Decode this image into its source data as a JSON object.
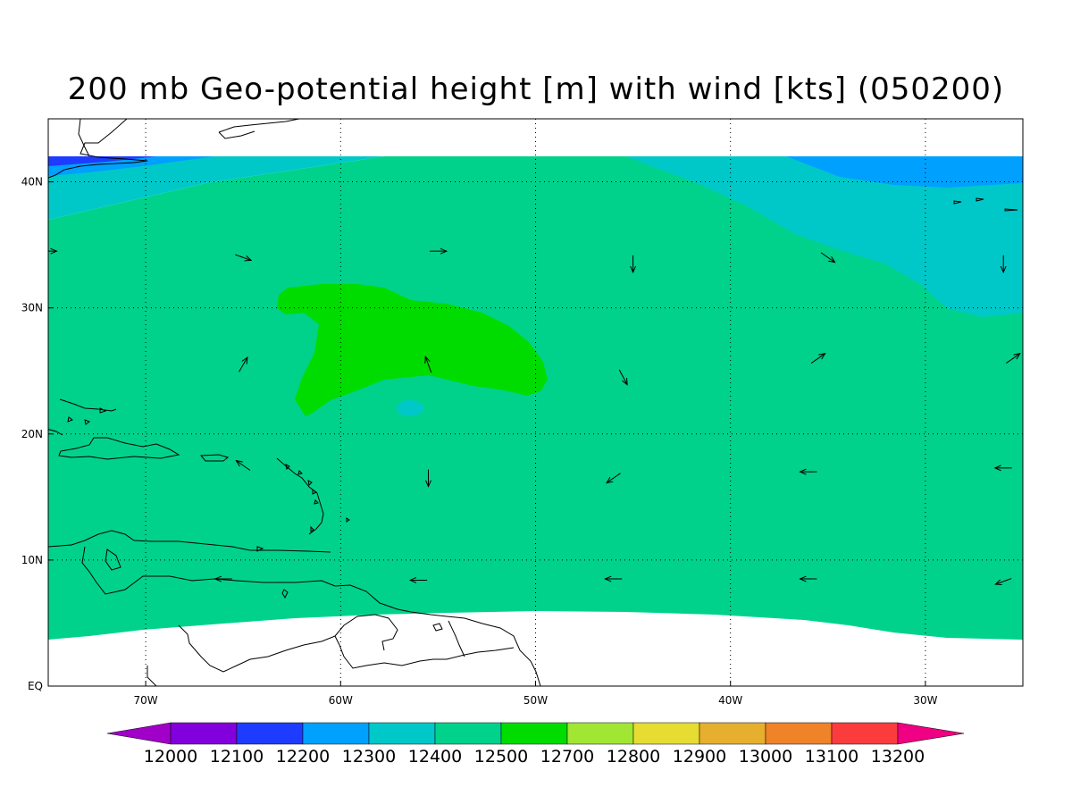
{
  "title": "200 mb Geo-potential height [m] with wind [kts] (050200)",
  "map": {
    "lon_range": [
      -75,
      -25
    ],
    "lat_range": [
      0,
      45
    ],
    "lon_ticks": [
      {
        "lon": -70,
        "label": "70W"
      },
      {
        "lon": -60,
        "label": "60W"
      },
      {
        "lon": -50,
        "label": "50W"
      },
      {
        "lon": -40,
        "label": "40W"
      },
      {
        "lon": -30,
        "label": "30W"
      }
    ],
    "lat_ticks": [
      {
        "lat": 0,
        "label": "EQ"
      },
      {
        "lat": 10,
        "label": "10N"
      },
      {
        "lat": 20,
        "label": "20N"
      },
      {
        "lat": 30,
        "label": "30N"
      },
      {
        "lat": 40,
        "label": "40N"
      }
    ],
    "grid": true,
    "wind_vectors": [
      {
        "lon": -75,
        "lat": 34.5,
        "dir": "E"
      },
      {
        "lon": -65,
        "lat": 34,
        "dir": "ESE"
      },
      {
        "lon": -55,
        "lat": 34.5,
        "dir": "E"
      },
      {
        "lon": -45,
        "lat": 33.5,
        "dir": "S"
      },
      {
        "lon": -35,
        "lat": 34,
        "dir": "SE"
      },
      {
        "lon": -26,
        "lat": 33.5,
        "dir": "S"
      },
      {
        "lon": -65,
        "lat": 25.5,
        "dir": "NNE"
      },
      {
        "lon": -55.5,
        "lat": 25.5,
        "dir": "NNW"
      },
      {
        "lon": -45.5,
        "lat": 24.5,
        "dir": "SSE"
      },
      {
        "lon": -35.5,
        "lat": 26,
        "dir": "NE"
      },
      {
        "lon": -25.5,
        "lat": 26,
        "dir": "NE"
      },
      {
        "lon": -65,
        "lat": 17.5,
        "dir": "NW"
      },
      {
        "lon": -55.5,
        "lat": 16.5,
        "dir": "S"
      },
      {
        "lon": -46,
        "lat": 16.5,
        "dir": "SW"
      },
      {
        "lon": -36,
        "lat": 17,
        "dir": "W"
      },
      {
        "lon": -26,
        "lat": 17.3,
        "dir": "W"
      },
      {
        "lon": -66,
        "lat": 8.5,
        "dir": "W"
      },
      {
        "lon": -56,
        "lat": 8.4,
        "dir": "W"
      },
      {
        "lon": -46,
        "lat": 8.5,
        "dir": "W"
      },
      {
        "lon": -36,
        "lat": 8.5,
        "dir": "W"
      },
      {
        "lon": -26,
        "lat": 8.3,
        "dir": "WSW"
      }
    ]
  },
  "colorbar": {
    "labels": [
      "12000",
      "12100",
      "12200",
      "12300",
      "12400",
      "12500",
      "12700",
      "12800",
      "12900",
      "13000",
      "13100",
      "13200"
    ],
    "colors": [
      "#a000c8",
      "#8200dc",
      "#1e3cff",
      "#00a0ff",
      "#00c8c8",
      "#00d28c",
      "#00dc00",
      "#a0e632",
      "#e6dc32",
      "#e6af2d",
      "#f08228",
      "#fa3c3c",
      "#f00082"
    ]
  },
  "colors": {
    "c12100": "#1e3cff",
    "c12200": "#00a0ff",
    "c12300": "#00c8c8",
    "c12400": "#00d28c",
    "c12500": "#00dc00"
  }
}
